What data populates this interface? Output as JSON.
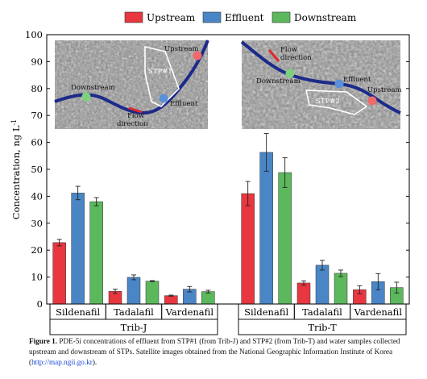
{
  "chart_data": {
    "type": "bar",
    "ylabel": "Concentration, ng L",
    "ylabel_superscript": "-1",
    "ylim": [
      0,
      100
    ],
    "yticks": [
      0,
      10,
      20,
      30,
      40,
      50,
      60,
      70,
      80,
      90,
      100
    ],
    "legend": {
      "position": "top-center",
      "entries": [
        {
          "name": "Upstream",
          "color": "#e8373f"
        },
        {
          "name": "Effluent",
          "color": "#4a86c6"
        },
        {
          "name": "Downstream",
          "color": "#5cb85c"
        }
      ]
    },
    "groups": [
      {
        "label": "Trib-J",
        "compounds": [
          {
            "name": "Sildenafil",
            "values": [
              22.8,
              41.2,
              38.0
            ],
            "errors": [
              1.2,
              2.5,
              1.5
            ]
          },
          {
            "name": "Tadalafil",
            "values": [
              4.7,
              9.9,
              8.5
            ],
            "errors": [
              0.8,
              0.9,
              0.2
            ]
          },
          {
            "name": "Vardenafil",
            "values": [
              3.1,
              5.5,
              4.6
            ],
            "errors": [
              0.2,
              1.0,
              0.5
            ]
          }
        ]
      },
      {
        "label": "Trib-T",
        "compounds": [
          {
            "name": "Sildenafil",
            "values": [
              41.0,
              56.3,
              48.8
            ],
            "errors": [
              4.5,
              7.0,
              5.5
            ]
          },
          {
            "name": "Tadalafil",
            "values": [
              7.8,
              14.4,
              11.4
            ],
            "errors": [
              0.8,
              1.8,
              1.2
            ]
          },
          {
            "name": "Vardenafil",
            "values": [
              5.3,
              8.3,
              6.1
            ],
            "errors": [
              1.5,
              3.0,
              2.0
            ]
          }
        ]
      }
    ],
    "insets": [
      {
        "labels": {
          "stp": "STP#1",
          "upstream": "Upstream",
          "downstream": "Downstream",
          "effluent": "Effluent",
          "flow": "Flow",
          "direction": "direction"
        },
        "marker_colors": {
          "upstream": "#f06a6a",
          "downstream": "#7dd07a",
          "effluent": "#5b8fd6"
        }
      },
      {
        "labels": {
          "stp": "STP#2",
          "upstream": "Upstream",
          "downstream": "Downstream",
          "effluent": "Effluent",
          "flow": "Flow",
          "direction": "direction"
        },
        "marker_colors": {
          "upstream": "#f06a6a",
          "downstream": "#7dd07a",
          "effluent": "#5b8fd6"
        }
      }
    ]
  },
  "caption": {
    "bold": "Figure 1.",
    "text": "PDE-5i concentrations of effluent from STP#1 (from Trib-J) and STP#2 (from Trib-T) and water samples collected upstream and downstream of STPs. Satellite images obtained from the National Geographic Information Institute of Korea (",
    "link": "http://map.ngii.go.kr",
    "after": ")."
  }
}
